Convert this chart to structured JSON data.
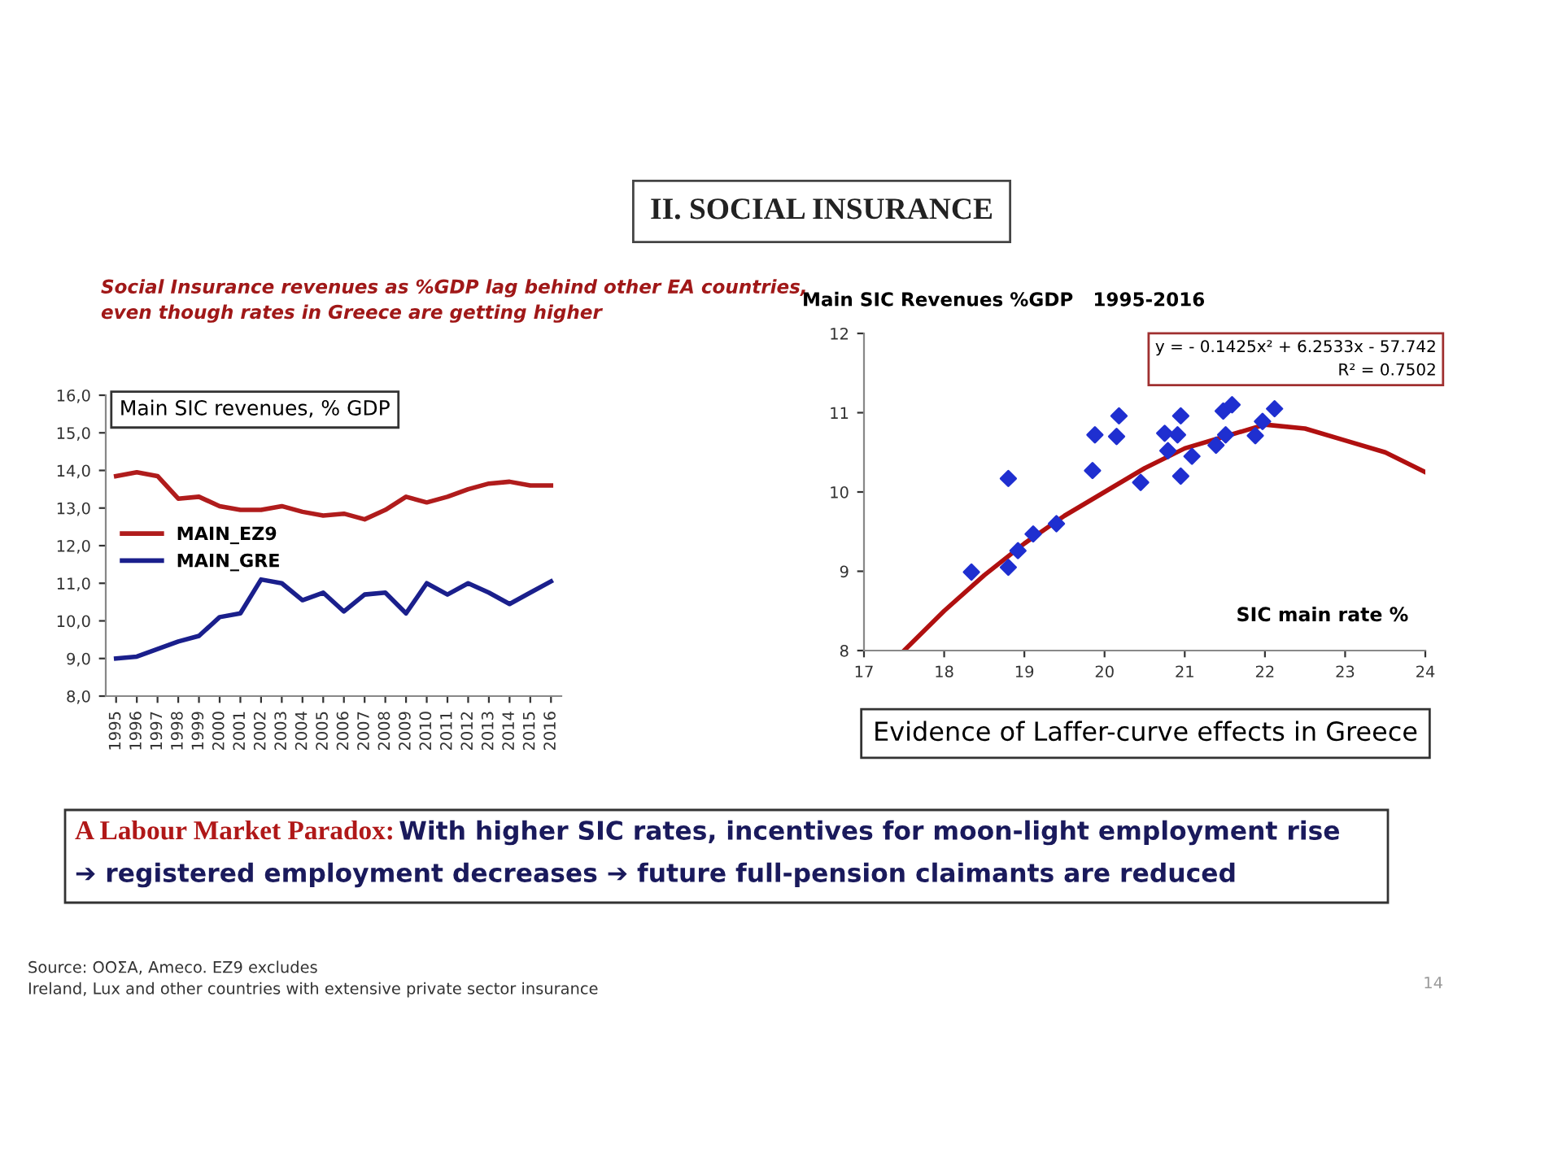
{
  "chart_data": [
    {
      "type": "line",
      "title": "Main SIC revenues, % GDP",
      "subtitle": "Social Insurance revenues as %GDP lag behind other EA countries,\neven though rates in Greece are getting higher",
      "categories": [
        "1995",
        "1996",
        "1997",
        "1998",
        "1999",
        "2000",
        "2001",
        "2002",
        "2003",
        "2004",
        "2005",
        "2006",
        "2007",
        "2008",
        "2009",
        "2010",
        "2011",
        "2012",
        "2013",
        "2014",
        "2015",
        "2016"
      ],
      "series": [
        {
          "name": "MAIN_EZ9",
          "color": "#b01c1c",
          "values": [
            13.85,
            13.95,
            13.85,
            13.25,
            13.3,
            13.05,
            12.95,
            12.95,
            13.05,
            12.9,
            12.8,
            12.85,
            12.7,
            12.95,
            13.3,
            13.15,
            13.3,
            13.5,
            13.65,
            13.7,
            13.6,
            13.6
          ]
        },
        {
          "name": "MAIN_GRE",
          "color": "#1a1f8c",
          "values": [
            9.0,
            9.05,
            9.25,
            9.45,
            9.6,
            10.1,
            10.2,
            11.1,
            11.0,
            10.55,
            10.75,
            10.25,
            10.7,
            10.75,
            10.2,
            11.0,
            10.7,
            11.0,
            10.75,
            10.45,
            10.75,
            11.05
          ]
        }
      ],
      "ylim": [
        8,
        16
      ],
      "yticks": [
        {
          "value": 8,
          "label": "8,0"
        },
        {
          "value": 9,
          "label": "9,0"
        },
        {
          "value": 10,
          "label": "10,0"
        },
        {
          "value": 11,
          "label": "11,0"
        },
        {
          "value": 12,
          "label": "12,0"
        },
        {
          "value": 13,
          "label": "13,0"
        },
        {
          "value": 14,
          "label": "14,0"
        },
        {
          "value": 15,
          "label": "15,0"
        },
        {
          "value": 16,
          "label": "16,0"
        }
      ],
      "grid": false,
      "legend": "left"
    },
    {
      "type": "scatter",
      "title": "Main SIC Revenues %GDP   1995-2016",
      "xlabel": "SIC main rate %",
      "annotations": [
        "y = - 0.1425x² + 6.2533x - 57.742\nR² = 0.7502",
        "Evidence of Laffer-curve effects in Greece"
      ],
      "series": [
        {
          "color": "#1f2fd0",
          "marker": "diamond",
          "x": [
            18.34,
            18.8,
            18.8,
            18.92,
            19.11,
            19.4,
            19.85,
            19.88,
            20.15,
            20.18,
            20.45,
            20.75,
            20.79,
            20.91,
            20.95,
            20.95,
            21.09,
            21.39,
            21.48,
            21.51,
            21.59,
            21.88,
            21.97,
            22.12
          ],
          "values": [
            8.99,
            10.17,
            9.05,
            9.26,
            9.47,
            9.6,
            10.27,
            10.72,
            10.7,
            10.96,
            10.12,
            10.74,
            10.52,
            10.72,
            10.96,
            10.2,
            10.45,
            10.59,
            11.02,
            10.72,
            11.1,
            10.71,
            10.89,
            11.05
          ]
        },
        {
          "type": "line",
          "color": "#b01010",
          "x": [
            17.5,
            18,
            18.5,
            19,
            19.5,
            20,
            20.5,
            21,
            21.5,
            22,
            22.5,
            23,
            23.5,
            24
          ],
          "values": [
            8.0,
            8.5,
            8.95,
            9.35,
            9.7,
            10.0,
            10.3,
            10.55,
            10.7,
            10.85,
            10.8,
            10.65,
            10.5,
            10.25
          ]
        }
      ],
      "xlim": [
        17,
        24
      ],
      "xticks": [
        17,
        18,
        19,
        20,
        21,
        22,
        23,
        24
      ],
      "ylim": [
        8,
        12
      ],
      "yticks": [
        8,
        9,
        10,
        11,
        12
      ],
      "grid": false,
      "legend": false
    },
    {
      "type": "other",
      "title": "II. SOCIAL INSURANCE",
      "annotations": [
        "A Labour Market Paradox:",
        "With higher SIC rates, incentives for moon-light employment rise",
        "➔ registered employment decreases ➔ future full-pension claimants are reduced",
        "Source: ΟΟΣΑ, Ameco. EZ9 excludes\nIreland, Lux and other countries with extensive private sector insurance",
        "14"
      ]
    }
  ]
}
